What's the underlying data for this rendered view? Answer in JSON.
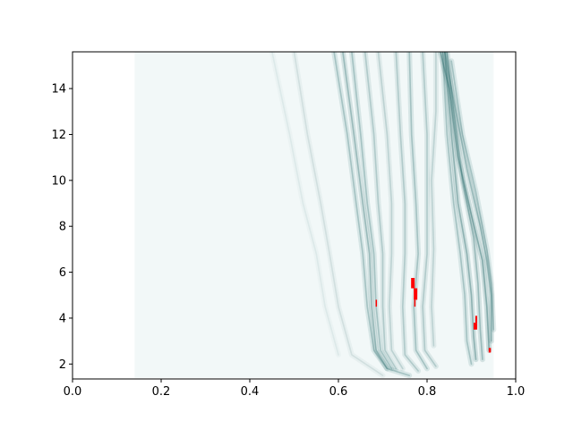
{
  "chart_data": {
    "type": "heatmap",
    "title": "",
    "xlabel": "",
    "ylabel": "",
    "xlim": [
      0.0,
      1.0
    ],
    "ylim": [
      1.35,
      15.6
    ],
    "x_ticks": [
      "0.0",
      "0.2",
      "0.4",
      "0.6",
      "0.8",
      "1.0"
    ],
    "y_ticks": [
      "2",
      "4",
      "6",
      "8",
      "10",
      "12",
      "14"
    ],
    "grid": false,
    "colormap": {
      "low": "#ffffff",
      "high": "#2f6f6f",
      "highlight": "#ff0000"
    },
    "background_wash": [
      {
        "x": [
          0.14,
          0.95
        ],
        "y": [
          1.4,
          15.6
        ],
        "intensity": 0.05
      }
    ],
    "ridges": [
      {
        "points": [
          [
            0.59,
            15.6
          ],
          [
            0.62,
            12.0
          ],
          [
            0.64,
            9.0
          ],
          [
            0.655,
            6.8
          ],
          [
            0.665,
            4.5
          ],
          [
            0.68,
            2.6
          ],
          [
            0.71,
            1.8
          ],
          [
            0.76,
            1.5
          ]
        ],
        "intensity": 0.3
      },
      {
        "points": [
          [
            0.61,
            15.6
          ],
          [
            0.635,
            12.0
          ],
          [
            0.655,
            9.0
          ],
          [
            0.67,
            6.8
          ],
          [
            0.675,
            4.5
          ],
          [
            0.685,
            2.6
          ],
          [
            0.71,
            1.8
          ]
        ],
        "intensity": 0.35
      },
      {
        "points": [
          [
            0.63,
            15.6
          ],
          [
            0.65,
            12.0
          ],
          [
            0.665,
            9.0
          ],
          [
            0.68,
            6.8
          ],
          [
            0.685,
            4.5
          ],
          [
            0.695,
            2.6
          ],
          [
            0.72,
            1.8
          ]
        ],
        "intensity": 0.3
      },
      {
        "points": [
          [
            0.66,
            15.6
          ],
          [
            0.68,
            12.0
          ],
          [
            0.69,
            9.0
          ],
          [
            0.7,
            6.8
          ],
          [
            0.7,
            4.5
          ],
          [
            0.705,
            2.6
          ],
          [
            0.73,
            1.8
          ]
        ],
        "intensity": 0.25
      },
      {
        "points": [
          [
            0.69,
            15.6
          ],
          [
            0.71,
            12.0
          ],
          [
            0.72,
            9.0
          ],
          [
            0.72,
            6.8
          ],
          [
            0.715,
            4.5
          ],
          [
            0.72,
            2.6
          ],
          [
            0.745,
            1.8
          ]
        ],
        "intensity": 0.2
      },
      {
        "points": [
          [
            0.73,
            15.6
          ],
          [
            0.74,
            12.0
          ],
          [
            0.75,
            9.0
          ],
          [
            0.75,
            6.8
          ],
          [
            0.745,
            4.5
          ],
          [
            0.75,
            2.4
          ],
          [
            0.78,
            1.7
          ]
        ],
        "intensity": 0.25
      },
      {
        "points": [
          [
            0.76,
            15.6
          ],
          [
            0.765,
            12.0
          ],
          [
            0.775,
            9.0
          ],
          [
            0.78,
            6.8
          ],
          [
            0.77,
            4.5
          ],
          [
            0.775,
            2.6
          ],
          [
            0.8,
            1.8
          ]
        ],
        "intensity": 0.3
      },
      {
        "points": [
          [
            0.79,
            15.6
          ],
          [
            0.8,
            12.0
          ],
          [
            0.8,
            9.0
          ],
          [
            0.8,
            6.8
          ],
          [
            0.79,
            4.5
          ],
          [
            0.795,
            2.6
          ],
          [
            0.82,
            1.9
          ]
        ],
        "intensity": 0.25
      },
      {
        "points": [
          [
            0.82,
            15.6
          ],
          [
            0.82,
            13.0
          ],
          [
            0.81,
            10.0
          ],
          [
            0.815,
            7.0
          ],
          [
            0.81,
            4.5
          ],
          [
            0.815,
            2.8
          ]
        ],
        "intensity": 0.2
      },
      {
        "points": [
          [
            0.835,
            15.6
          ],
          [
            0.845,
            12.0
          ],
          [
            0.86,
            9.0
          ],
          [
            0.875,
            6.8
          ],
          [
            0.885,
            5.0
          ],
          [
            0.89,
            3.0
          ],
          [
            0.9,
            2.0
          ]
        ],
        "intensity": 0.3
      },
      {
        "points": [
          [
            0.84,
            15.6
          ],
          [
            0.855,
            12.0
          ],
          [
            0.87,
            9.0
          ],
          [
            0.89,
            6.8
          ],
          [
            0.9,
            5.0
          ],
          [
            0.905,
            3.2
          ],
          [
            0.91,
            2.2
          ]
        ],
        "intensity": 0.4
      },
      {
        "points": [
          [
            0.845,
            15.6
          ],
          [
            0.86,
            13.0
          ],
          [
            0.88,
            10.0
          ],
          [
            0.905,
            7.5
          ],
          [
            0.915,
            5.5
          ],
          [
            0.92,
            3.5
          ],
          [
            0.925,
            2.2
          ]
        ],
        "intensity": 0.35
      },
      {
        "points": [
          [
            0.83,
            15.6
          ],
          [
            0.85,
            14.0
          ],
          [
            0.87,
            11.0
          ],
          [
            0.9,
            8.5
          ],
          [
            0.925,
            6.5
          ],
          [
            0.935,
            4.5
          ],
          [
            0.94,
            2.6
          ]
        ],
        "intensity": 0.45
      },
      {
        "points": [
          [
            0.84,
            15.6
          ],
          [
            0.86,
            13.5
          ],
          [
            0.89,
            10.5
          ],
          [
            0.92,
            8.0
          ],
          [
            0.935,
            6.5
          ],
          [
            0.945,
            5.0
          ],
          [
            0.945,
            3.0
          ]
        ],
        "intensity": 0.35
      },
      {
        "points": [
          [
            0.855,
            15.2
          ],
          [
            0.88,
            12.0
          ],
          [
            0.91,
            9.5
          ],
          [
            0.935,
            7.0
          ],
          [
            0.945,
            5.5
          ],
          [
            0.95,
            3.5
          ]
        ],
        "intensity": 0.3
      },
      {
        "points": [
          [
            0.5,
            15.6
          ],
          [
            0.53,
            12.0
          ],
          [
            0.56,
            9.0
          ],
          [
            0.58,
            6.8
          ],
          [
            0.6,
            4.5
          ],
          [
            0.63,
            2.4
          ],
          [
            0.7,
            1.5
          ]
        ],
        "intensity": 0.12
      },
      {
        "points": [
          [
            0.45,
            15.6
          ],
          [
            0.49,
            12.0
          ],
          [
            0.52,
            9.0
          ],
          [
            0.55,
            6.8
          ],
          [
            0.57,
            4.5
          ],
          [
            0.6,
            2.4
          ]
        ],
        "intensity": 0.08
      }
    ],
    "highlighted_cells": [
      {
        "x": [
          0.684,
          0.687
        ],
        "y": [
          4.5,
          4.8
        ]
      },
      {
        "x": [
          0.764,
          0.772
        ],
        "y": [
          5.3,
          5.75
        ]
      },
      {
        "x": [
          0.77,
          0.778
        ],
        "y": [
          4.8,
          5.3
        ]
      },
      {
        "x": [
          0.771,
          0.774
        ],
        "y": [
          4.5,
          4.8
        ]
      },
      {
        "x": [
          0.905,
          0.913
        ],
        "y": [
          3.5,
          3.8
        ]
      },
      {
        "x": [
          0.909,
          0.913
        ],
        "y": [
          3.8,
          4.1
        ]
      },
      {
        "x": [
          0.939,
          0.944
        ],
        "y": [
          2.5,
          2.7
        ]
      }
    ]
  }
}
